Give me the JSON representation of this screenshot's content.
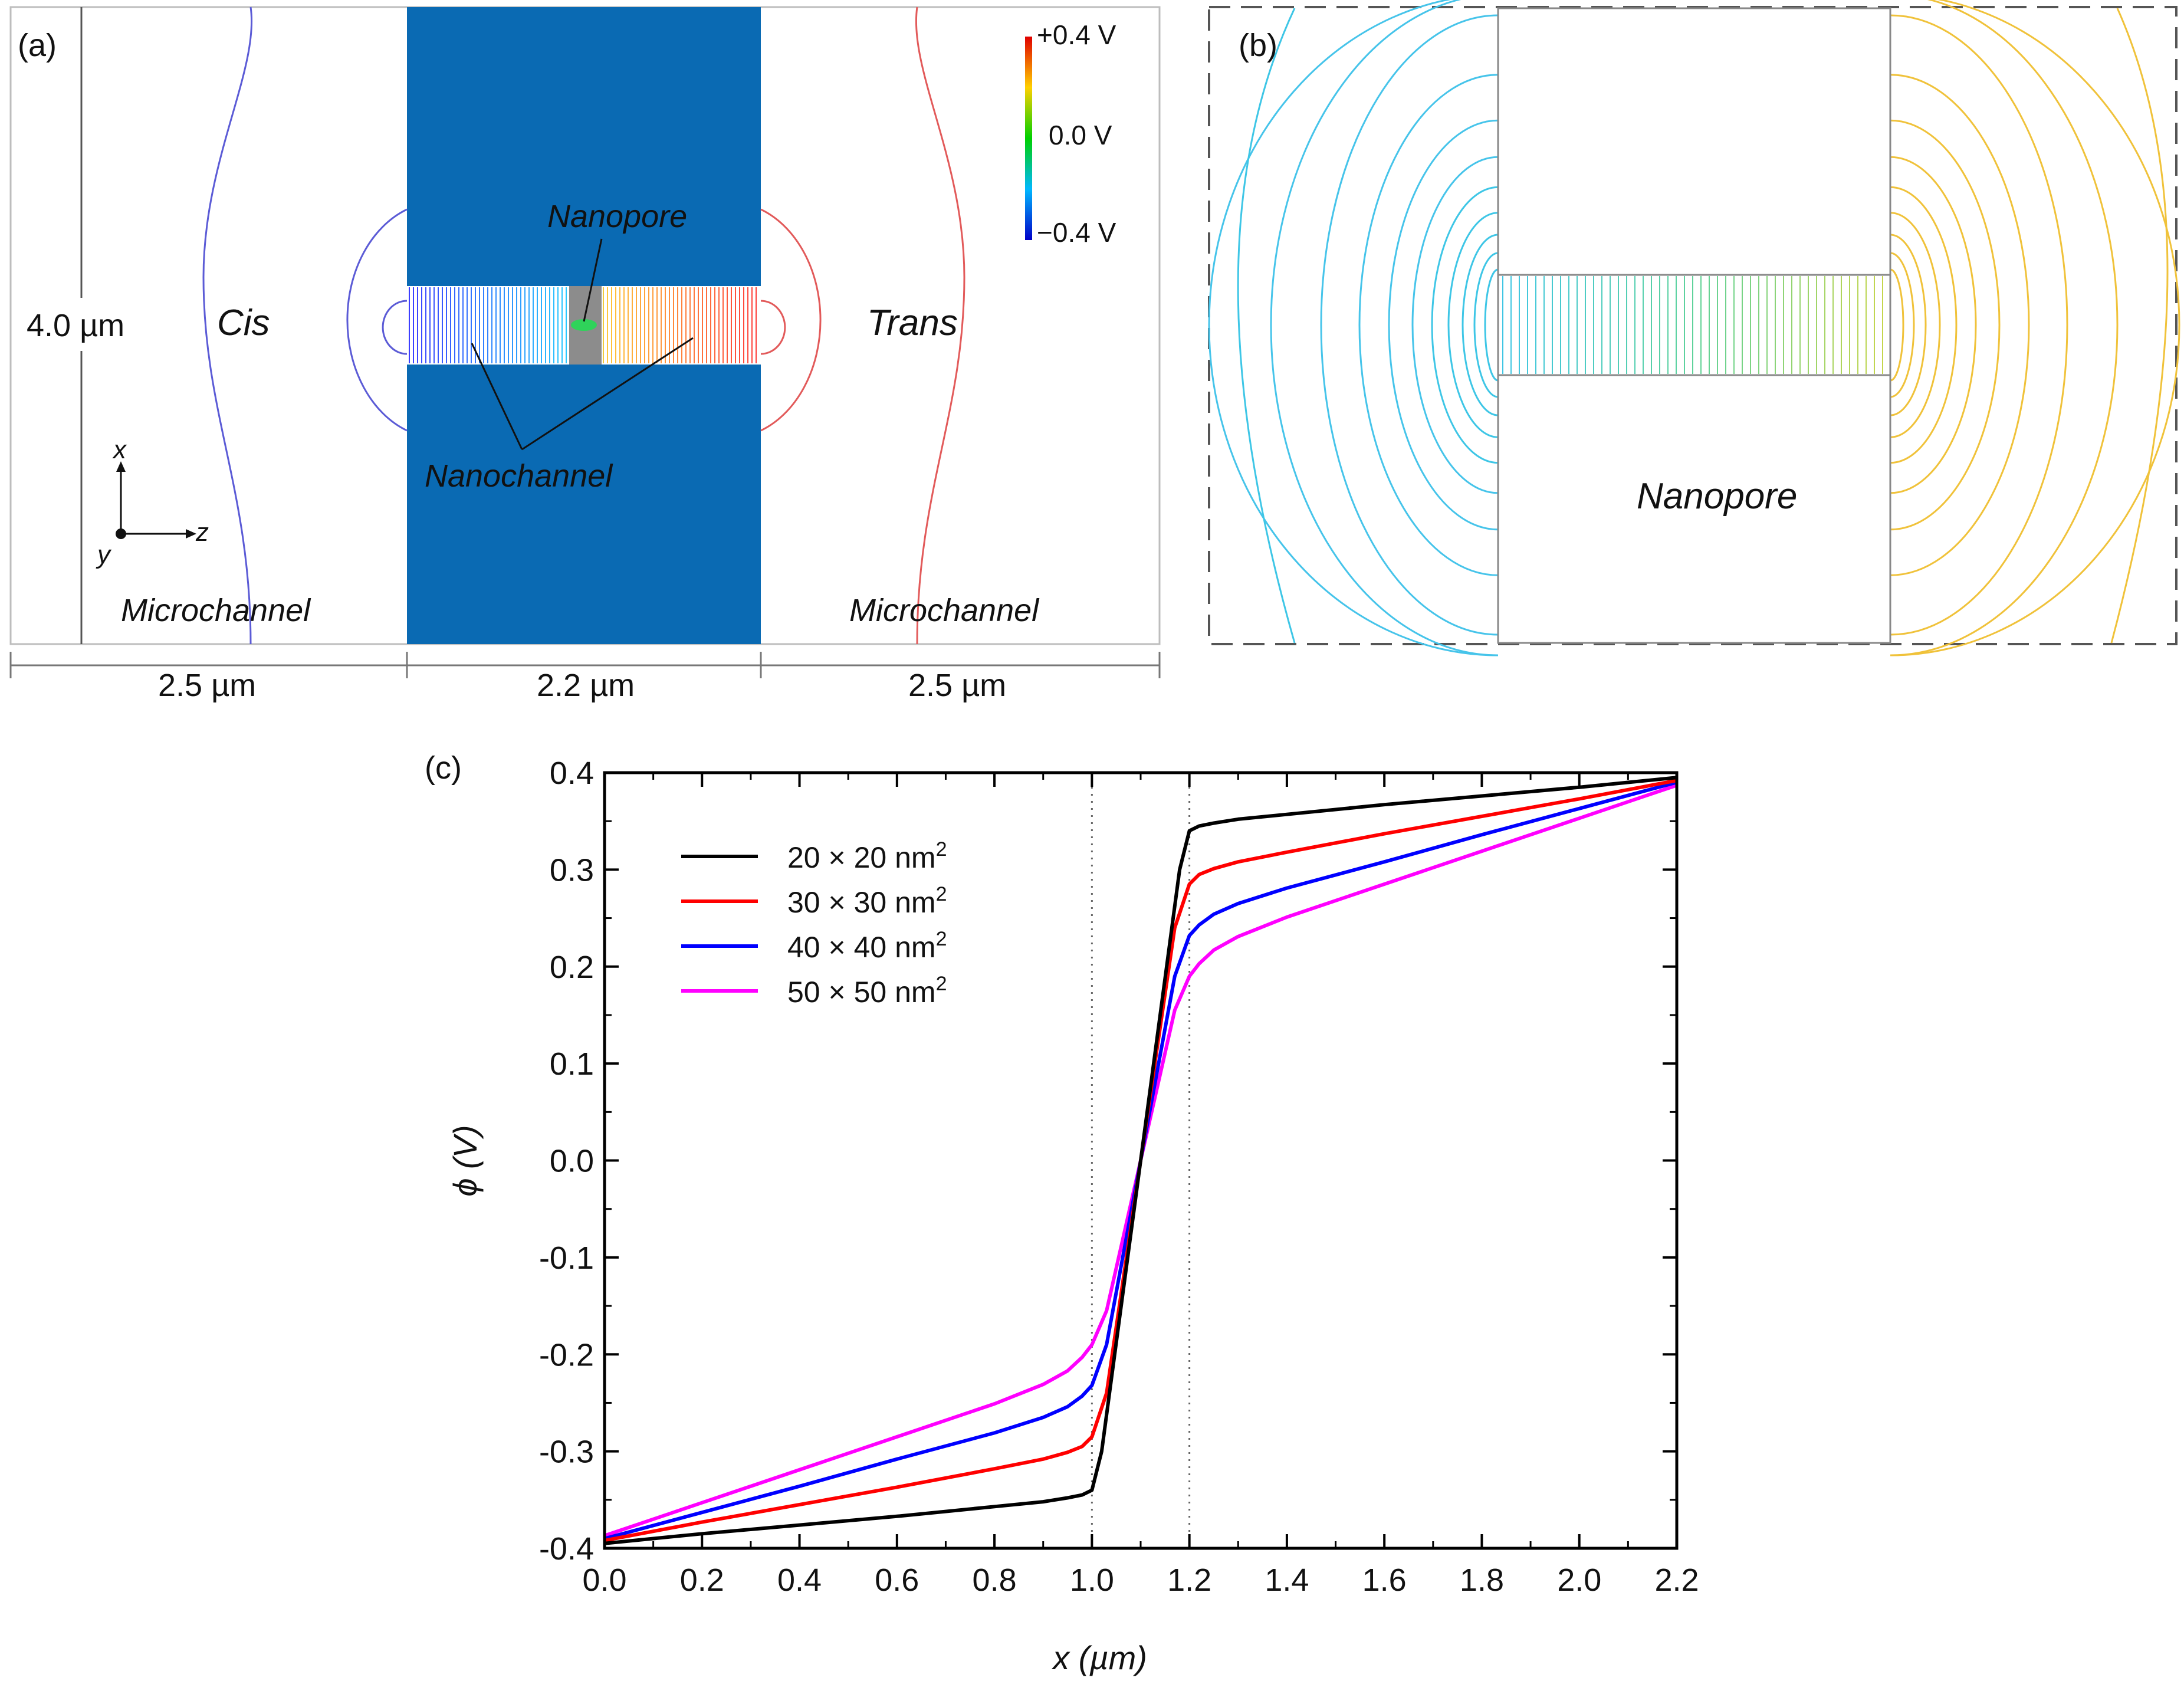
{
  "panel_a": {
    "tag": "(a)",
    "height_dim": "4.0 µm",
    "dims": [
      "2.5 µm",
      "2.2 µm",
      "2.5 µm"
    ],
    "cis": "Cis",
    "trans": "Trans",
    "microchannel_left": "Microchannel",
    "microchannel_right": "Microchannel",
    "nanopore": "Nanopore",
    "nanochannel": "Nanochannel",
    "axis_x": "x",
    "axis_y": "y",
    "axis_z": "z",
    "colorbar": {
      "top": "+0.4 V",
      "mid": "0.0 V",
      "bottom": "−0.4 V"
    },
    "colors": {
      "membrane": "#0a6ab3",
      "pore": "#8c8c8c",
      "cis_contour": "#5b5bd6",
      "trans_contour": "#e25a5a"
    }
  },
  "panel_b": {
    "tag": "(b)",
    "nanopore": "Nanopore",
    "colors": {
      "left": "#3ec6e6",
      "center": "#5fd39a",
      "right": "#f0c23a"
    }
  },
  "chart_data": {
    "type": "line",
    "panel_label": "(c)",
    "xlabel": "x (µm)",
    "ylabel": "ϕ (V)",
    "xlim": [
      0.0,
      2.2
    ],
    "ylim": [
      -0.4,
      0.4
    ],
    "xticks": [
      "0.0",
      "0.2",
      "0.4",
      "0.6",
      "0.8",
      "1.0",
      "1.2",
      "1.4",
      "1.6",
      "1.8",
      "2.0",
      "2.2"
    ],
    "yticks": [
      "0.4",
      "0.3",
      "0.2",
      "0.1",
      "0.0",
      "-0.1",
      "-0.2",
      "-0.3",
      "-0.4"
    ],
    "vlines": [
      1.0,
      1.2
    ],
    "legend_position": "top-left",
    "series": [
      {
        "name": "20 × 20 nm",
        "sup": "2",
        "color": "#000000",
        "x": [
          0,
          0.2,
          0.4,
          0.6,
          0.8,
          0.9,
          0.95,
          0.98,
          1.0,
          1.02,
          1.1,
          1.18,
          1.2,
          1.22,
          1.25,
          1.3,
          1.4,
          1.6,
          1.8,
          2.0,
          2.2
        ],
        "y": [
          -0.395,
          -0.385,
          -0.376,
          -0.367,
          -0.357,
          -0.352,
          -0.348,
          -0.345,
          -0.34,
          -0.3,
          0.0,
          0.3,
          0.34,
          0.345,
          0.348,
          0.352,
          0.357,
          0.367,
          0.376,
          0.385,
          0.395
        ]
      },
      {
        "name": "30 × 30 nm",
        "sup": "2",
        "color": "#ff0000",
        "x": [
          0,
          0.2,
          0.4,
          0.6,
          0.8,
          0.9,
          0.95,
          0.98,
          1.0,
          1.03,
          1.1,
          1.17,
          1.2,
          1.22,
          1.25,
          1.3,
          1.4,
          1.6,
          1.8,
          2.0,
          2.2
        ],
        "y": [
          -0.392,
          -0.373,
          -0.355,
          -0.337,
          -0.318,
          -0.308,
          -0.301,
          -0.295,
          -0.285,
          -0.24,
          0.0,
          0.24,
          0.285,
          0.295,
          0.301,
          0.308,
          0.318,
          0.337,
          0.355,
          0.373,
          0.392
        ]
      },
      {
        "name": "40 × 40 nm",
        "sup": "2",
        "color": "#0000ff",
        "x": [
          0,
          0.2,
          0.4,
          0.6,
          0.8,
          0.9,
          0.95,
          0.98,
          1.0,
          1.03,
          1.1,
          1.17,
          1.2,
          1.22,
          1.25,
          1.3,
          1.4,
          1.6,
          1.8,
          2.0,
          2.2
        ],
        "y": [
          -0.39,
          -0.363,
          -0.336,
          -0.308,
          -0.281,
          -0.265,
          -0.254,
          -0.243,
          -0.232,
          -0.19,
          0.0,
          0.19,
          0.232,
          0.243,
          0.254,
          0.265,
          0.281,
          0.308,
          0.336,
          0.363,
          0.39
        ]
      },
      {
        "name": "50 × 50 nm",
        "sup": "2",
        "color": "#ff00ff",
        "x": [
          0,
          0.2,
          0.4,
          0.6,
          0.8,
          0.9,
          0.95,
          0.98,
          1.0,
          1.03,
          1.1,
          1.17,
          1.2,
          1.22,
          1.25,
          1.3,
          1.4,
          1.6,
          1.8,
          2.0,
          2.2
        ],
        "y": [
          -0.387,
          -0.353,
          -0.319,
          -0.285,
          -0.251,
          -0.231,
          -0.217,
          -0.203,
          -0.19,
          -0.155,
          0.0,
          0.155,
          0.19,
          0.203,
          0.217,
          0.231,
          0.251,
          0.285,
          0.319,
          0.353,
          0.387
        ]
      }
    ]
  }
}
